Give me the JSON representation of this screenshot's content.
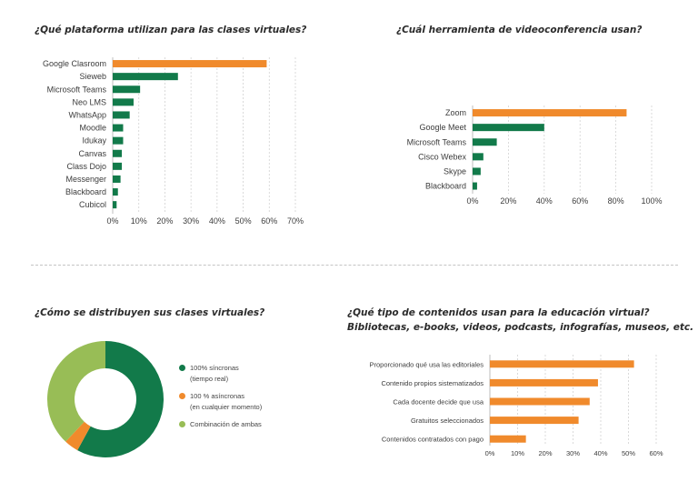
{
  "colors": {
    "orange": "#f08a2c",
    "green": "#127a4a",
    "light_green": "#98bd56",
    "grid": "#d2d2d2",
    "axis": "#bdbdbd",
    "text": "#3c3c3c"
  },
  "chart_data": [
    {
      "id": "platform",
      "type": "bar",
      "orientation": "horizontal",
      "title": "¿Qué plataforma utilizan para las clases virtuales?",
      "categories": [
        "Google Clasroom",
        "Sieweb",
        "Microsoft Teams",
        "Neo LMS",
        "WhatsApp",
        "Moodle",
        "Idukay",
        "Canvas",
        "Class Dojo",
        "Messenger",
        "Blackboard",
        "Cubicol"
      ],
      "values": [
        59,
        25,
        10.5,
        8,
        6.5,
        4,
        4,
        3.5,
        3.5,
        3,
        2,
        1.5
      ],
      "bar_colors": [
        "orange",
        "green",
        "green",
        "green",
        "green",
        "green",
        "green",
        "green",
        "green",
        "green",
        "green",
        "green"
      ],
      "xlim": [
        0,
        70
      ],
      "x_ticks": [
        "0%",
        "10%",
        "20%",
        "30%",
        "40%",
        "50%",
        "60%",
        "70%"
      ],
      "grid": true
    },
    {
      "id": "videoconf",
      "type": "bar",
      "orientation": "horizontal",
      "title": "¿Cuál herramienta de videoconferencia usan?",
      "categories": [
        "Zoom",
        "Google Meet",
        "Microsoft Teams",
        "Cisco Webex",
        "Skype",
        "Blackboard"
      ],
      "values": [
        86,
        40,
        13.5,
        6,
        4.5,
        2.5
      ],
      "bar_colors": [
        "orange",
        "green",
        "green",
        "green",
        "green",
        "green"
      ],
      "xlim": [
        0,
        100
      ],
      "x_ticks": [
        "0%",
        "20%",
        "40%",
        "60%",
        "80%",
        "100%"
      ],
      "grid": true
    },
    {
      "id": "distribution",
      "type": "pie",
      "donut": true,
      "title": "¿Cómo se distribuyen sus clases virtuales?",
      "slices": [
        {
          "label": "100% síncronas (tiempo real)",
          "label_lines": [
            "100% síncronas",
            "(tiempo real)"
          ],
          "value": 58,
          "color": "green"
        },
        {
          "label": "100 % asíncronas (en cualquier momento)",
          "label_lines": [
            "100 % asíncronas",
            "(en cualquier momento)"
          ],
          "value": 4,
          "color": "orange"
        },
        {
          "label": "Combinación de ambas",
          "label_lines": [
            "Combinación de ambas"
          ],
          "value": 38,
          "color": "light_green"
        }
      ],
      "legend_position": "right"
    },
    {
      "id": "contents",
      "type": "bar",
      "orientation": "horizontal",
      "title": "¿Qué tipo de contenidos usan para la educación virtual?",
      "subtitle": "Bibliotecas, e-books, videos, podcasts, infografías, museos, etc.",
      "categories": [
        "Proporcionado qué usa las editoriales",
        "Contenido propios sistematizados",
        "Cada docente decide que usa",
        "Gratuitos seleccionados",
        "Contenidos contratados con pago"
      ],
      "values": [
        52,
        39,
        36,
        32,
        13
      ],
      "bar_colors": [
        "orange",
        "orange",
        "orange",
        "orange",
        "orange"
      ],
      "xlim": [
        0,
        60
      ],
      "x_ticks": [
        "0%",
        "10%",
        "20%",
        "30%",
        "40%",
        "50%",
        "60%"
      ],
      "grid": true
    }
  ]
}
